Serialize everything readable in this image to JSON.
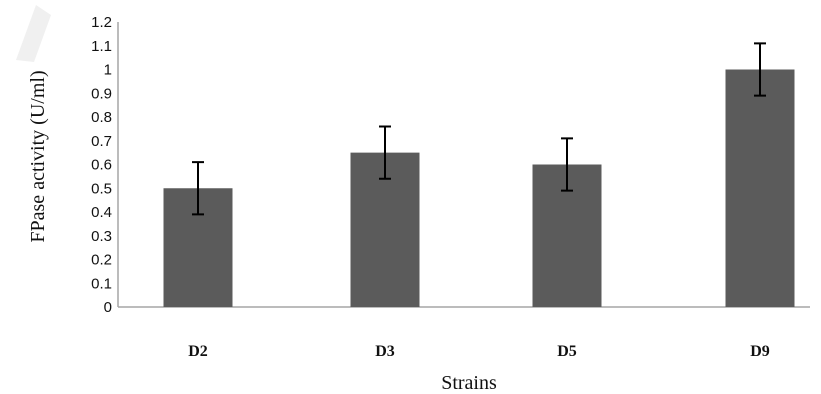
{
  "chart_data": {
    "type": "bar",
    "title": "",
    "xlabel": "Strains",
    "ylabel": "FPase activity  (U/ml)",
    "categories": [
      "D2",
      "D3",
      "D5",
      "D9"
    ],
    "series": [
      {
        "values": [
          0.5,
          0.65,
          0.6,
          1.0
        ],
        "error": [
          0.11,
          0.11,
          0.11,
          0.11
        ]
      }
    ],
    "ylim": [
      0,
      1.2
    ],
    "yticks": [
      "0",
      "0.1",
      "0.2",
      "0.3",
      "0.4",
      "0.5",
      "0.6",
      "0.7",
      "0.8",
      "0.9",
      "1",
      "1.1",
      "1.2"
    ],
    "grid": false,
    "legend": "none",
    "colors": {
      "bar": "#5b5b5b",
      "axis": "#a6a6a6",
      "error": "#000000"
    }
  }
}
